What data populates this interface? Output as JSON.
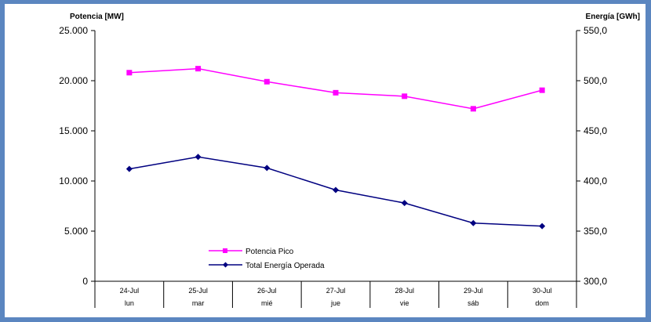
{
  "chart_data": {
    "type": "line",
    "categories": [
      "24-Jul",
      "25-Jul",
      "26-Jul",
      "27-Jul",
      "28-Jul",
      "29-Jul",
      "30-Jul"
    ],
    "category_sublabels": [
      "lun",
      "mar",
      "mié",
      "jue",
      "vie",
      "sáb",
      "dom"
    ],
    "y_left": {
      "label": "Potencia [MW]",
      "lim": [
        0,
        25000
      ],
      "ticks": [
        0,
        5000,
        10000,
        15000,
        20000,
        25000
      ],
      "tick_labels": [
        "0",
        "5.000",
        "10.000",
        "15.000",
        "20.000",
        "25.000"
      ]
    },
    "y_right": {
      "label": "Energía [GWh]",
      "lim": [
        300,
        550
      ],
      "ticks": [
        300,
        350,
        400,
        450,
        500,
        550
      ],
      "tick_labels": [
        "300,0",
        "350,0",
        "400,0",
        "450,0",
        "500,0",
        "550,0"
      ]
    },
    "series": [
      {
        "name": "Potencia Pico",
        "axis": "left",
        "color": "#ff00ff",
        "marker": "square",
        "values": [
          20800,
          21200,
          19900,
          18800,
          18450,
          17200,
          19050
        ]
      },
      {
        "name": "Total Energía Operada",
        "axis": "right",
        "color": "#000080",
        "marker": "diamond",
        "values": [
          412,
          424,
          413,
          391,
          378,
          358,
          355
        ]
      }
    ],
    "legend": "bottom-left-inside",
    "grid": false
  }
}
